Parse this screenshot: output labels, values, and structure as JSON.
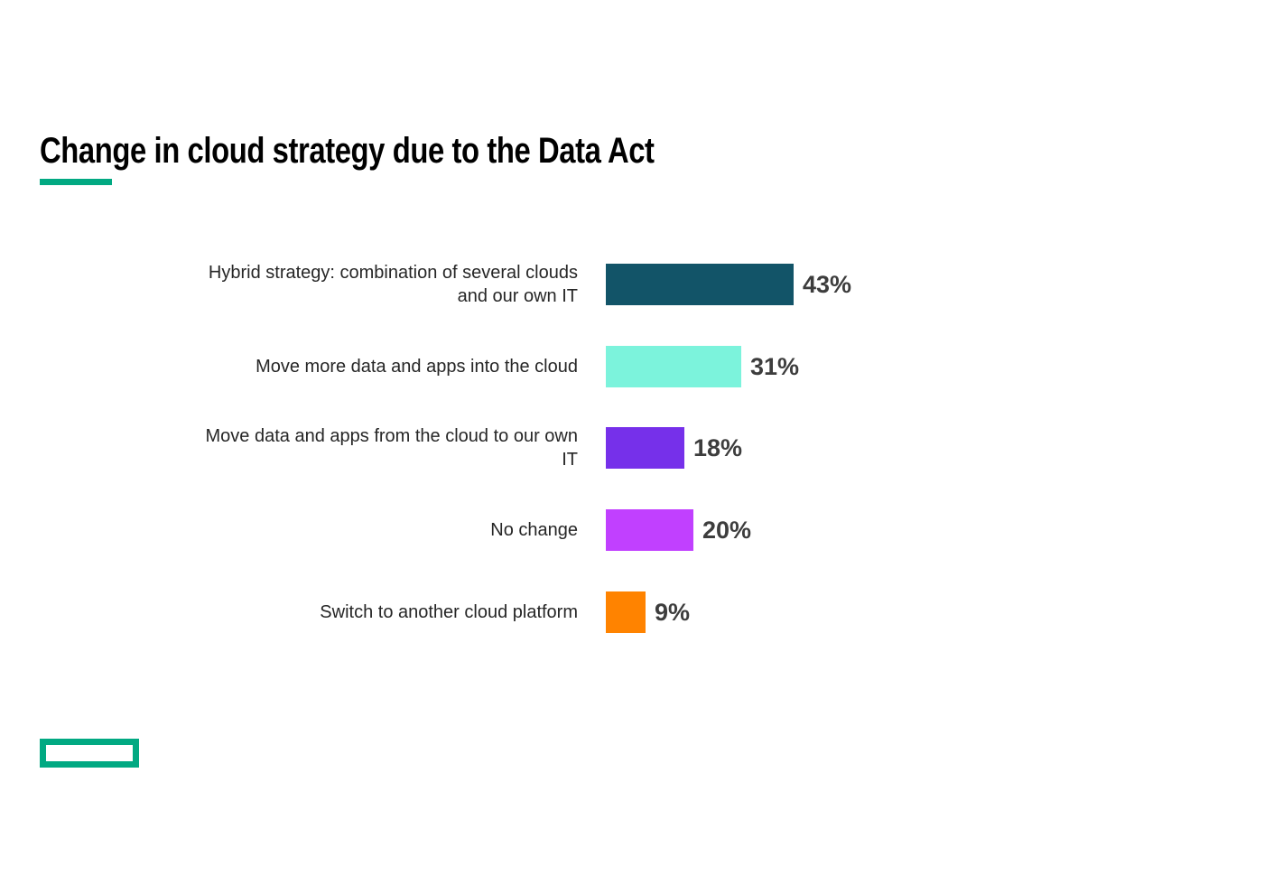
{
  "page": {
    "title": "Change in cloud strategy due to the Data Act",
    "accent_color": "#01A982"
  },
  "chart_data": {
    "type": "bar",
    "orientation": "horizontal",
    "title": "Change in cloud strategy due to the Data Act",
    "categories": [
      "Hybrid strategy: combination of several clouds and our own IT",
      "Move more data and apps into the cloud",
      "Move data and apps from the cloud to our own IT",
      "No change",
      "Switch to another cloud platform"
    ],
    "label_lines": [
      [
        "Hybrid strategy: combination of several clouds",
        "and our own IT"
      ],
      [
        "Move more data and apps into the cloud"
      ],
      [
        "Move data and apps from the cloud to our own",
        "IT"
      ],
      [
        "No change"
      ],
      [
        "Switch to another cloud platform"
      ]
    ],
    "values": [
      43,
      31,
      18,
      20,
      9
    ],
    "value_labels": [
      "43%",
      "31%",
      "18%",
      "20%",
      "9%"
    ],
    "colors": [
      "#125468",
      "#7CF3DC",
      "#7630EA",
      "#C140FF",
      "#FF8300"
    ],
    "value_label_color": "#3d3d3d",
    "category_label_color": "#262626",
    "xlim": [
      0,
      45
    ],
    "axis_visible": false,
    "grid": false,
    "legend": false
  },
  "footer": {
    "logo_name": "hpe-element-logo"
  }
}
